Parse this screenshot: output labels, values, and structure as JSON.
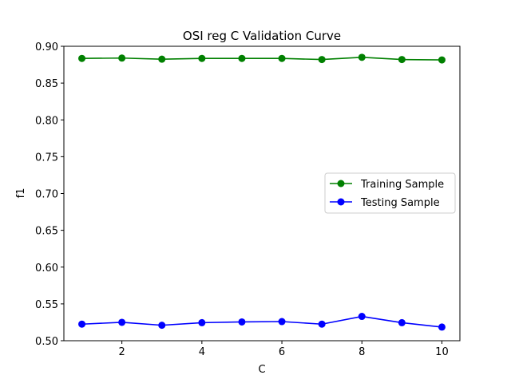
{
  "chart_data": {
    "type": "line",
    "title": "OSI reg C Validation Curve",
    "xlabel": "C",
    "ylabel": "f1",
    "x": [
      1,
      2,
      3,
      4,
      5,
      6,
      7,
      8,
      9,
      10
    ],
    "xlim": [
      0.55,
      10.45
    ],
    "ylim": [
      0.5,
      0.9
    ],
    "xticks": [
      2,
      4,
      6,
      8,
      10
    ],
    "xtick_labels": [
      "2",
      "4",
      "6",
      "8",
      "10"
    ],
    "yticks": [
      0.5,
      0.55,
      0.6,
      0.65,
      0.7,
      0.75,
      0.8,
      0.85,
      0.9
    ],
    "ytick_labels": [
      "0.50",
      "0.55",
      "0.60",
      "0.65",
      "0.70",
      "0.75",
      "0.80",
      "0.85",
      "0.90"
    ],
    "grid": false,
    "legend_position": "center-right",
    "series": [
      {
        "name": "Training Sample",
        "color": "#008000",
        "marker": "circle",
        "values": [
          0.8835,
          0.884,
          0.8825,
          0.8835,
          0.8835,
          0.8835,
          0.882,
          0.885,
          0.882,
          0.8815
        ]
      },
      {
        "name": "Testing Sample",
        "color": "#0000ff",
        "marker": "circle",
        "values": [
          0.5225,
          0.525,
          0.521,
          0.5245,
          0.5255,
          0.526,
          0.5225,
          0.533,
          0.5245,
          0.5185
        ]
      }
    ]
  }
}
